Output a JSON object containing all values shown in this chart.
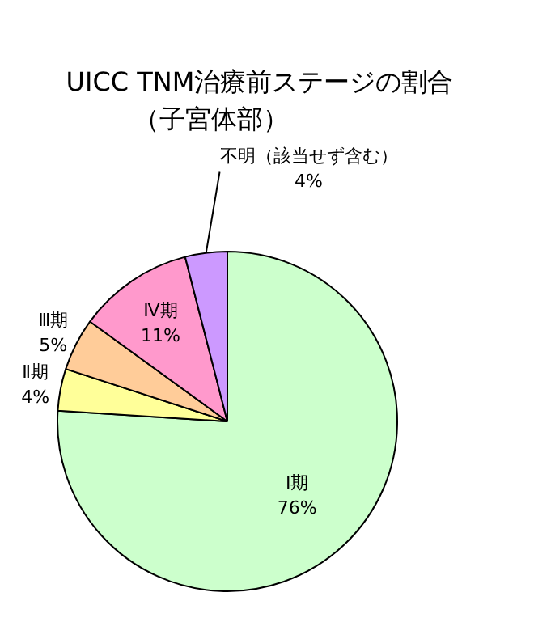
{
  "chart_data": {
    "type": "pie",
    "title": "UICC TNM治療前ステージの割合",
    "subtitle": "（子宮体部）",
    "categories": [
      "Ⅰ期",
      "Ⅱ期",
      "Ⅲ期",
      "Ⅳ期",
      "不明（該当せず含む）"
    ],
    "values": [
      76,
      4,
      5,
      11,
      4
    ],
    "colors": [
      "#ccffcc",
      "#ffff99",
      "#ffcc99",
      "#ff99cc",
      "#cc99ff"
    ],
    "value_labels": [
      "76%",
      "4%",
      "5%",
      "11%",
      "4%"
    ]
  }
}
